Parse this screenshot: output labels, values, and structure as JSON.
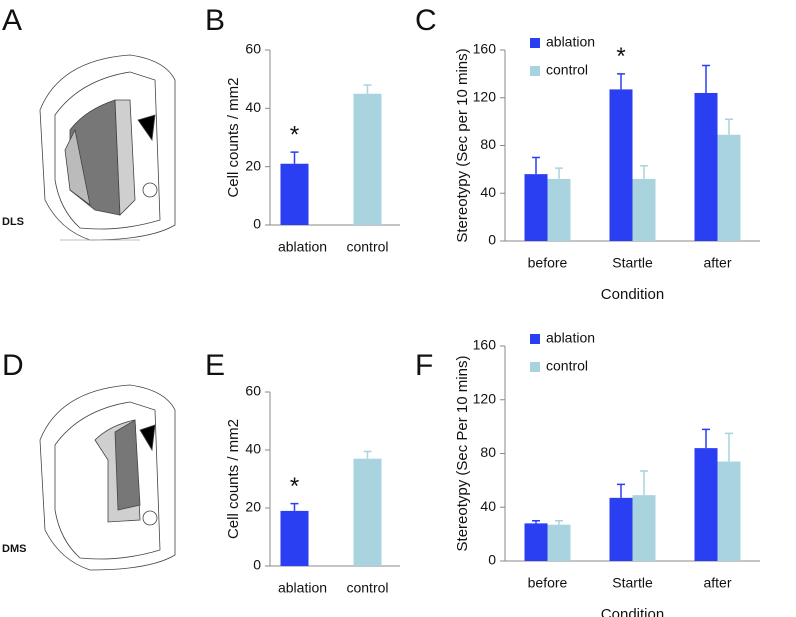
{
  "panel_labels": [
    "A",
    "D"
  ],
  "region_labels": [
    "DLS",
    "DMS"
  ],
  "chart_data": [
    {
      "panel": "B",
      "type": "bar",
      "categories": [
        "ablation",
        "control"
      ],
      "values": [
        21,
        45
      ],
      "errors": [
        4,
        3
      ],
      "colors": [
        "#2a3ef2",
        "#a9d3df"
      ],
      "ylabel": "Cell counts / mm2",
      "ylim": [
        0,
        60
      ],
      "yticks": [
        0,
        20,
        40,
        60
      ],
      "annotations": [
        {
          "text": "*",
          "category": "ablation"
        }
      ]
    },
    {
      "panel": "C",
      "type": "bar",
      "categories": [
        "before",
        "Startle",
        "after"
      ],
      "ylabel": "Stereotypy (Sec per 10 mins)",
      "xlabel": "Condition",
      "ylim": [
        0,
        160
      ],
      "yticks": [
        0,
        40,
        80,
        120,
        160
      ],
      "legend": "upper left",
      "series": [
        {
          "name": "ablation",
          "color": "#2a3ef2",
          "values": [
            56,
            127,
            124
          ],
          "errors": [
            14,
            13,
            23
          ]
        },
        {
          "name": "control",
          "color": "#a9d3df",
          "values": [
            52,
            52,
            89
          ],
          "errors": [
            9,
            11,
            13
          ]
        }
      ],
      "annotations": [
        {
          "text": "*",
          "category": "Startle",
          "series": "ablation"
        }
      ]
    },
    {
      "panel": "E",
      "type": "bar",
      "categories": [
        "ablation",
        "control"
      ],
      "values": [
        19,
        37
      ],
      "errors": [
        2.5,
        2.5
      ],
      "colors": [
        "#2a3ef2",
        "#a9d3df"
      ],
      "ylabel": "Cell counts / mm2",
      "ylim": [
        0,
        60
      ],
      "yticks": [
        0,
        20,
        40,
        60
      ],
      "annotations": [
        {
          "text": "*",
          "category": "ablation"
        }
      ]
    },
    {
      "panel": "F",
      "type": "bar",
      "categories": [
        "before",
        "Startle",
        "after"
      ],
      "ylabel": "Stereotypy (Sec Per 10 mins)",
      "xlabel": "Condition",
      "ylim": [
        0,
        160
      ],
      "yticks": [
        0,
        40,
        80,
        120,
        160
      ],
      "legend": "upper left",
      "series": [
        {
          "name": "ablation",
          "color": "#2a3ef2",
          "values": [
            28,
            47,
            84
          ],
          "errors": [
            2,
            10,
            14
          ]
        },
        {
          "name": "control",
          "color": "#a9d3df",
          "values": [
            27,
            49,
            74
          ],
          "errors": [
            3,
            18,
            21
          ]
        }
      ]
    }
  ]
}
